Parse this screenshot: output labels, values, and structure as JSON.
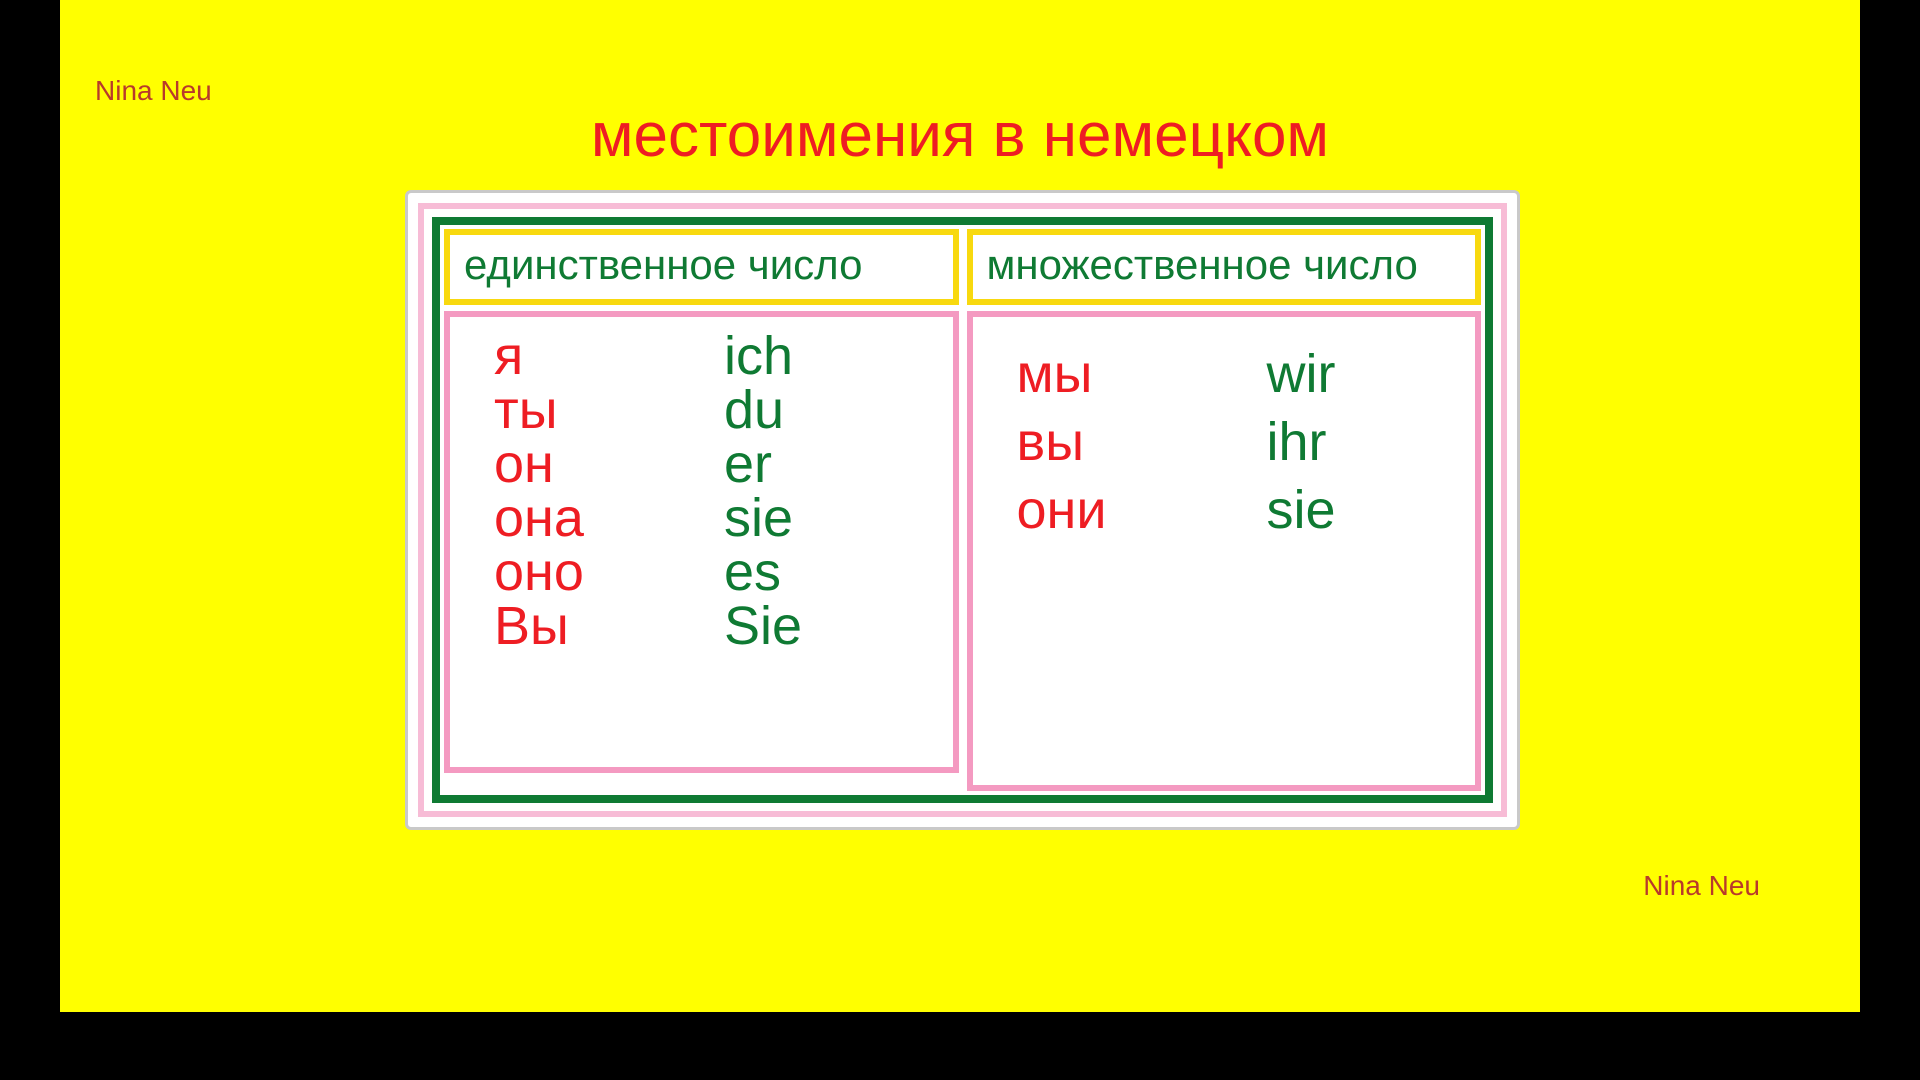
{
  "colors": {
    "page_bg": "#000000",
    "slide_bg": "#ffff00",
    "title": "#ee1d23",
    "watermark": "#b83a2b",
    "outer_border": "#c9c9c9",
    "pink_border": "#f7bcd6",
    "green_border": "#0f7a33",
    "yellow_border": "#f8d90f",
    "pink_body_border": "#f49ac1",
    "header_text": "#0f7a33",
    "russian_text": "#ee1d23",
    "german_text": "#0f7a33"
  },
  "watermark": "Nina Neu",
  "title": "местоимения в немецком",
  "fontsizes": {
    "title": 62,
    "header": 42,
    "cell": 54,
    "watermark": 28
  },
  "columns": [
    {
      "header": "единственное число",
      "rows": [
        {
          "ru": "я",
          "de": "ich"
        },
        {
          "ru": "ты",
          "de": "du"
        },
        {
          "ru": "он",
          "de": "er"
        },
        {
          "ru": "она",
          "de": "sie"
        },
        {
          "ru": "оно",
          "de": "es"
        },
        {
          "ru": "Вы",
          "de": "Sie"
        }
      ]
    },
    {
      "header": "множественное число",
      "rows": [
        {
          "ru": "мы",
          "de": "wir"
        },
        {
          "ru": "вы",
          "de": "ihr"
        },
        {
          "ru": "они",
          "de": "sie"
        }
      ]
    }
  ]
}
